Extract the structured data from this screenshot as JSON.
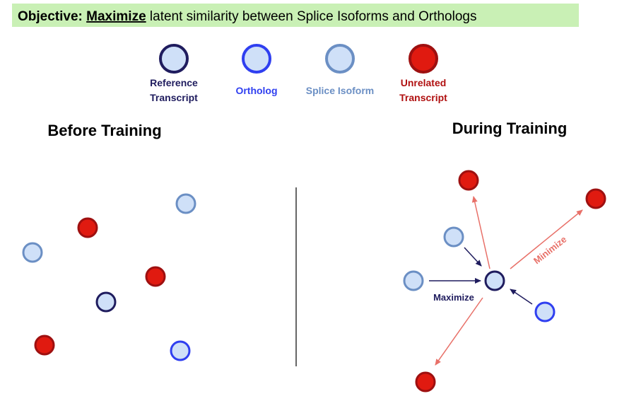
{
  "objective": {
    "prefix": "Objective: ",
    "emphasis": "Maximize",
    "rest": " latent similarity between Splice Isoforms and Orthologs"
  },
  "legend": [
    {
      "id": "reference",
      "lines": [
        "Reference",
        "Transcript"
      ],
      "fill": "#cfe0f8",
      "stroke": "#1f1c5e",
      "label_color": "#1f1c5e"
    },
    {
      "id": "ortholog",
      "lines": [
        "Ortholog"
      ],
      "fill": "#cfe0f8",
      "stroke": "#2f3ff0",
      "label_color": "#2f3ff0"
    },
    {
      "id": "splice",
      "lines": [
        "Splice Isoform"
      ],
      "fill": "#cfe0f8",
      "stroke": "#6b8fc4",
      "label_color": "#6b8fc4"
    },
    {
      "id": "unrelated",
      "lines": [
        "Unrelated",
        "Transcript"
      ],
      "fill": "#e01a10",
      "stroke": "#9e1010",
      "label_color": "#b01010"
    }
  ],
  "panels": {
    "before_title": "Before Training",
    "during_title": "During Training"
  },
  "arrows": {
    "maximize_label": "Maximize",
    "minimize_label": "Minimize",
    "maximize_color": "#1f1c5e",
    "minimize_color": "#e87068",
    "minimize_label_color": "#e87068"
  }
}
